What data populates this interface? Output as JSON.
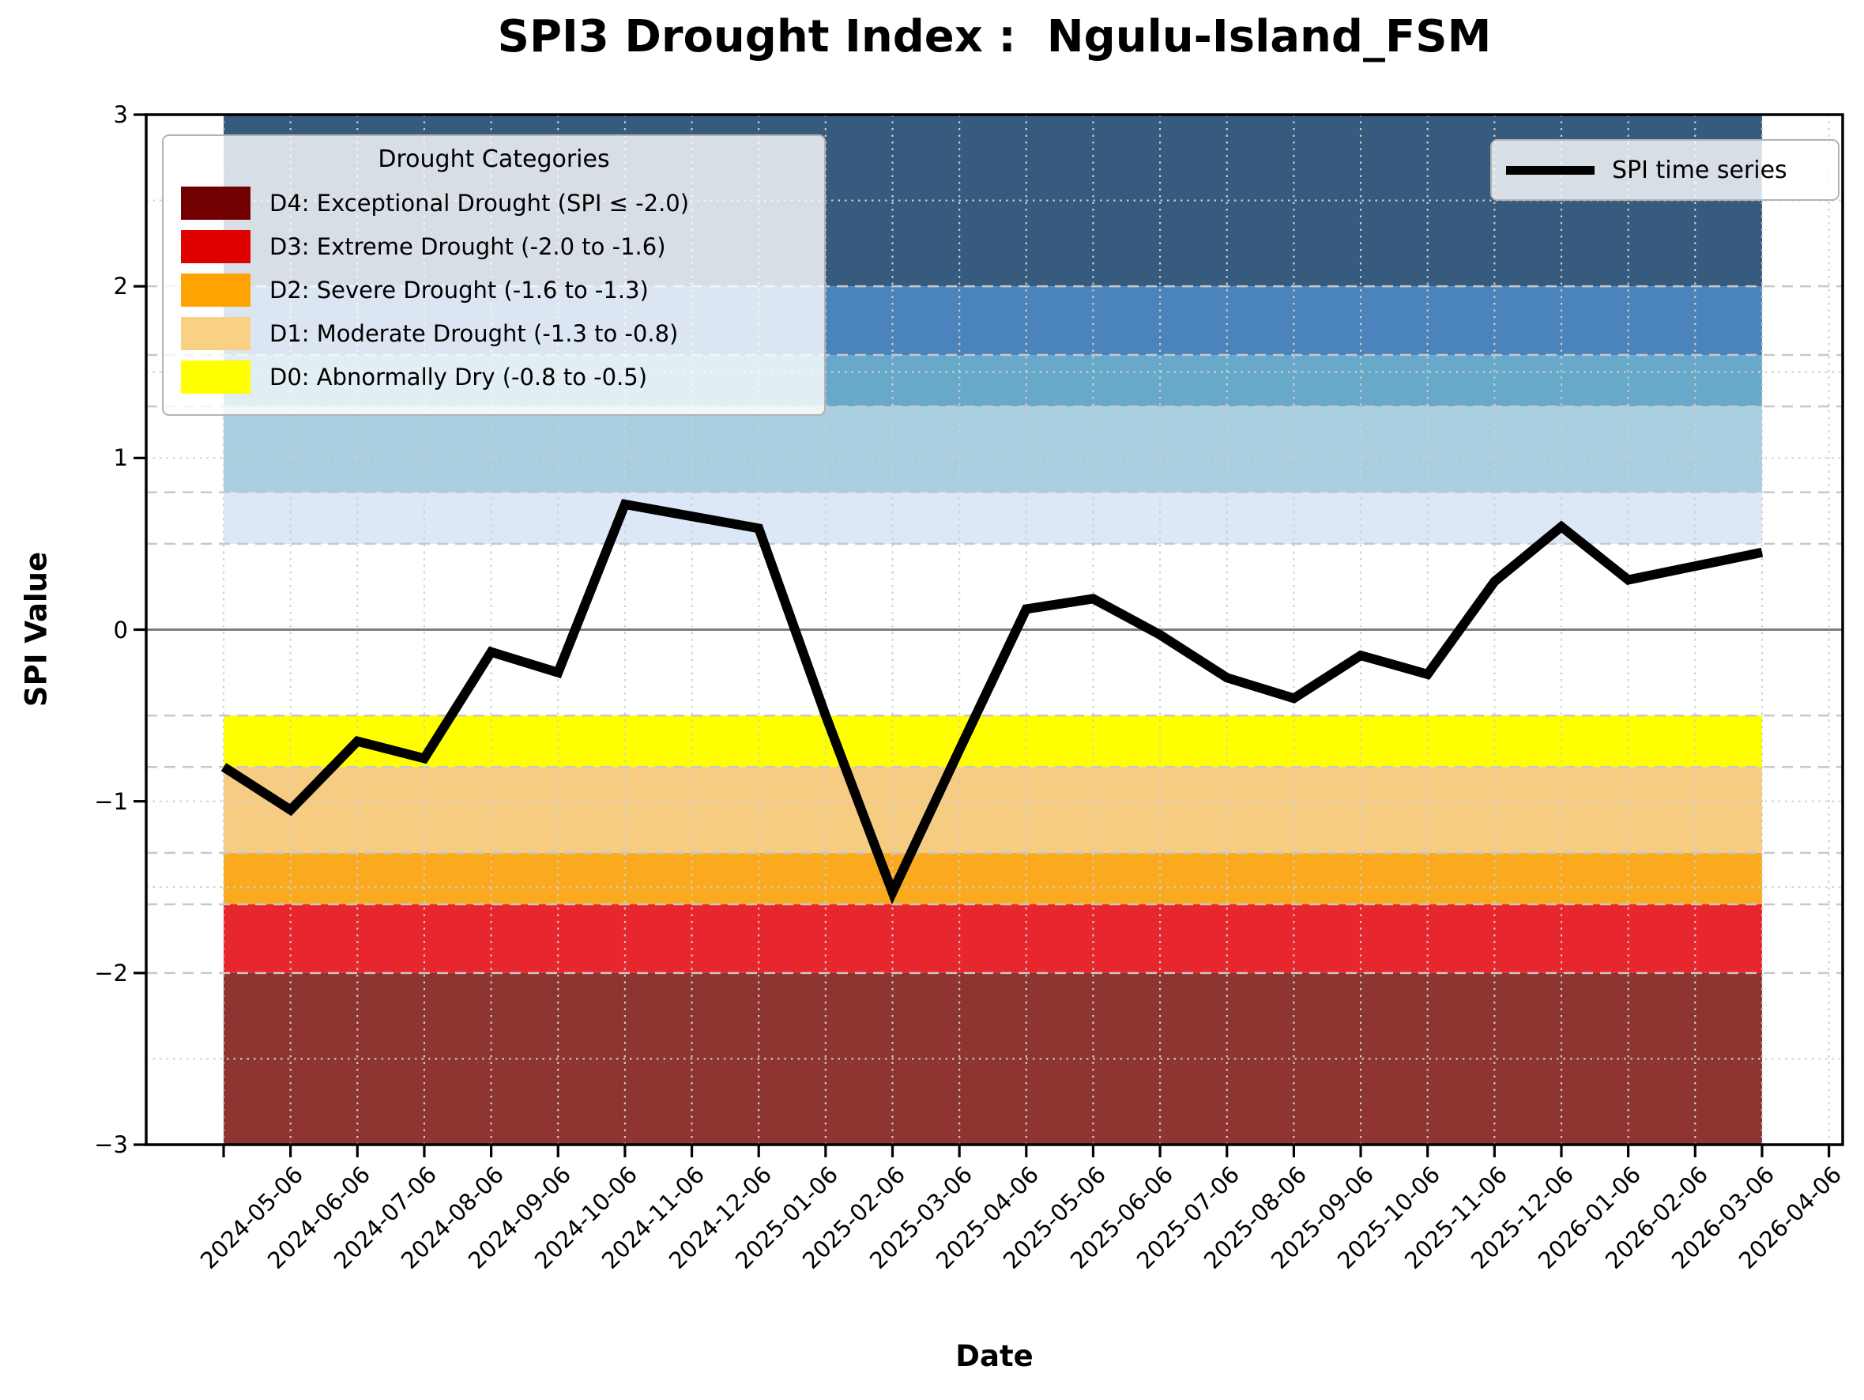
{
  "title": "SPI3 Drought Index :  Ngulu-Island_FSM",
  "axes": {
    "x_label": "Date",
    "y_label": "SPI Value",
    "y_tick_labels": [
      "3",
      "2",
      "1",
      "0",
      "−1",
      "−2",
      "−3"
    ],
    "y_tick_values": [
      3,
      2,
      1,
      0,
      -1,
      -2,
      -3
    ],
    "x_tick_labels": [
      "2024-05-06",
      "2024-06-06",
      "2024-07-06",
      "2024-08-06",
      "2024-09-06",
      "2024-10-06",
      "2024-11-06",
      "2024-12-06",
      "2025-01-06",
      "2025-02-06",
      "2025-03-06",
      "2025-04-06",
      "2025-05-06",
      "2025-06-06",
      "2025-07-06",
      "2025-08-06",
      "2025-09-06",
      "2025-10-06",
      "2025-11-06",
      "2025-12-06",
      "2026-01-06",
      "2026-02-06",
      "2026-03-06",
      "2026-04-06"
    ]
  },
  "legend_categories": {
    "title": "Drought Categories",
    "items": [
      {
        "label": "D4: Exceptional Drought (SPI ≤ -2.0)",
        "color": "#730000"
      },
      {
        "label": "D3: Extreme Drought (-2.0 to -1.6)",
        "color": "#e00000"
      },
      {
        "label": "D2: Severe Drought (-1.6 to -1.3)",
        "color": "#ffa303"
      },
      {
        "label": "D1: Moderate Drought (-1.3 to -0.8)",
        "color": "#f9d185"
      },
      {
        "label": "D0: Abnormally Dry (-0.8 to -0.5)",
        "color": "#ffff00"
      }
    ]
  },
  "legend_series": {
    "label": "SPI time series",
    "line_color": "#000000"
  },
  "chart_data": {
    "type": "line",
    "title": "SPI3 Drought Index :  Ngulu-Island_FSM",
    "xlabel": "Date",
    "ylabel": "SPI Value",
    "ylim": [
      -3,
      3
    ],
    "yticks": [
      3,
      2,
      1,
      0,
      -1,
      -2,
      -3
    ],
    "grid": "dashed band-boundary lines at ±0.5, ±0.8, ±1.3, ±1.6, ±2.0; dotted minor lines at ±1.0, ±1.5, ±2.5; dotted vertical line at every monthly tick; solid gray zero line",
    "legend_position": {
      "categories": "upper left",
      "series": "upper right"
    },
    "series": [
      {
        "name": "SPI time series",
        "color": "#000000",
        "line_width": 12,
        "x": [
          "2024-04-06",
          "2024-05-06",
          "2024-06-06",
          "2024-07-06",
          "2024-08-06",
          "2024-09-06",
          "2024-10-06",
          "2024-11-06",
          "2024-12-06",
          "2025-01-06",
          "2025-02-06",
          "2025-03-06",
          "2025-04-06",
          "2025-05-06",
          "2025-06-06",
          "2025-07-06",
          "2025-08-06",
          "2025-09-06",
          "2025-10-06",
          "2025-11-06",
          "2025-12-06",
          "2026-01-06",
          "2026-02-06",
          "2026-03-06"
        ],
        "y": [
          -0.8,
          -1.05,
          -0.65,
          -0.75,
          -0.13,
          -0.25,
          0.73,
          0.66,
          0.59,
          -0.5,
          -1.53,
          -0.7,
          0.12,
          0.18,
          -0.03,
          -0.28,
          -0.4,
          -0.15,
          -0.26,
          0.28,
          0.6,
          0.29,
          0.37,
          0.45
        ]
      }
    ],
    "bands": [
      {
        "range": [
          2.0,
          3.0
        ],
        "color": "#375a7f",
        "category": ""
      },
      {
        "range": [
          1.6,
          2.0
        ],
        "color": "#4b84bc",
        "category": ""
      },
      {
        "range": [
          1.3,
          1.6
        ],
        "color": "#68a8c8",
        "category": ""
      },
      {
        "range": [
          0.8,
          1.3
        ],
        "color": "#a9cfe1",
        "category": ""
      },
      {
        "range": [
          0.5,
          0.8
        ],
        "color": "#dce8f8",
        "category": ""
      },
      {
        "range": [
          -0.8,
          -0.5
        ],
        "color": "#ffff00",
        "category": "D0: Abnormally Dry"
      },
      {
        "range": [
          -1.3,
          -0.8
        ],
        "color": "#f6cc82",
        "category": "D1: Moderate Drought"
      },
      {
        "range": [
          -1.6,
          -1.3
        ],
        "color": "#fbaa20",
        "category": "D2: Severe Drought"
      },
      {
        "range": [
          -2.0,
          -1.6
        ],
        "color": "#e8262d",
        "category": "D3: Extreme Drought"
      },
      {
        "range": [
          -3.0,
          -2.0
        ],
        "color": "#8e3431",
        "category": "D4: Exceptional Drought"
      }
    ],
    "colors": {
      "zero_line": "#7d7d7d",
      "grid_dashed": "#c8c8c8",
      "grid_dotted": "#cfcfcf",
      "spine": "#000000",
      "background": "#ffffff"
    }
  }
}
